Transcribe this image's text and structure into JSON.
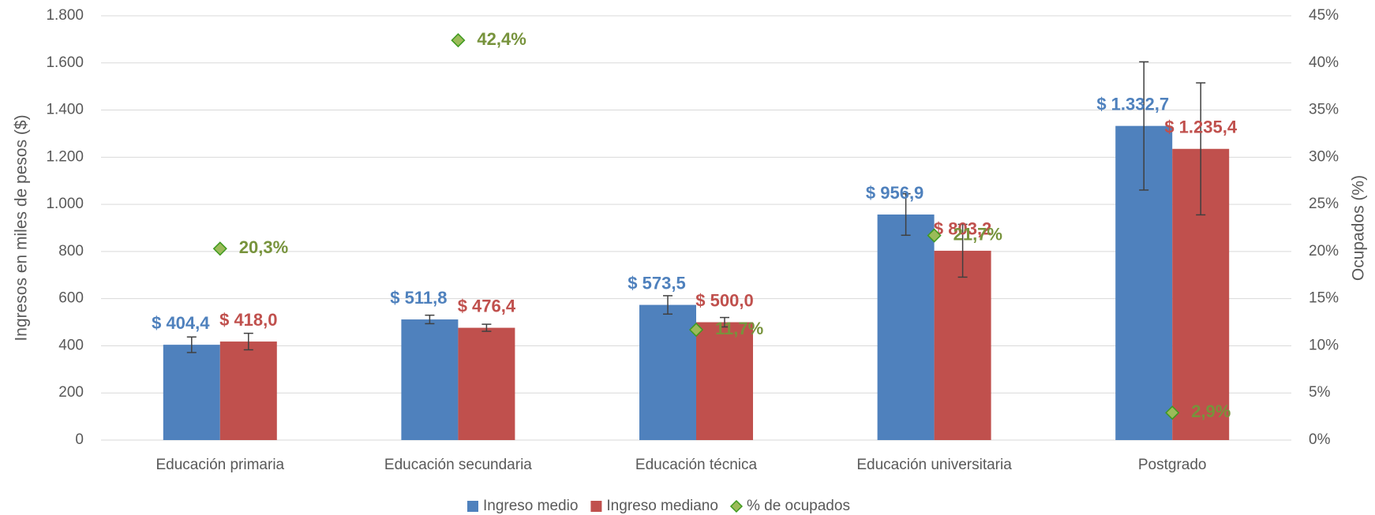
{
  "chart_data": {
    "type": "bar",
    "categories": [
      "Educación primaria",
      "Educación secundaria",
      "Educación técnica",
      "Educación universitaria",
      "Postgrado"
    ],
    "series": [
      {
        "name": "Ingreso medio",
        "color": "#4f81bd",
        "values": [
          404.4,
          511.8,
          573.5,
          956.9,
          1332.7
        ],
        "value_labels": [
          "$ 404,4",
          "$ 511,8",
          "$ 573,5",
          "$ 956,9",
          "$ 1.332,7"
        ],
        "errors": [
          33,
          18,
          39,
          88,
          272
        ]
      },
      {
        "name": "Ingreso mediano",
        "color": "#c0504d",
        "values": [
          418.0,
          476.4,
          500.0,
          803.2,
          1235.4
        ],
        "value_labels": [
          "$ 418,0",
          "$ 476,4",
          "$ 500,0",
          "$ 803,2",
          "$ 1.235,4"
        ],
        "errors": [
          35,
          15,
          20,
          112,
          280
        ]
      },
      {
        "name": "% de ocupados",
        "color": "#9bbb59",
        "axis": "y2",
        "type": "scatter",
        "values": [
          20.3,
          42.4,
          11.7,
          21.7,
          2.9
        ],
        "value_labels": [
          "20,3%",
          "42,4%",
          "11,7%",
          "21,7%",
          "2,9%"
        ]
      }
    ],
    "ylabel": "Ingresos en miles de pesos ($)",
    "y2label": "Ocupados (%)",
    "ylim": [
      0,
      1800
    ],
    "yticks": [
      0,
      200,
      400,
      600,
      800,
      {
        "value": 1000,
        "label": "1.000"
      },
      {
        "value": 1200,
        "label": "1.200"
      },
      {
        "value": 1400,
        "label": "1.400"
      },
      {
        "value": 1600,
        "label": "1.600"
      },
      {
        "value": 1800,
        "label": "1.800"
      }
    ],
    "y2lim": [
      0,
      45
    ],
    "y2ticks": [
      {
        "value": 0,
        "label": "0%"
      },
      {
        "value": 5,
        "label": "5%"
      },
      {
        "value": 10,
        "label": "10%"
      },
      {
        "value": 15,
        "label": "15%"
      },
      {
        "value": 20,
        "label": "20%"
      },
      {
        "value": 25,
        "label": "25%"
      },
      {
        "value": 30,
        "label": "30%"
      },
      {
        "value": 35,
        "label": "35%"
      },
      {
        "value": 40,
        "label": "40%"
      },
      {
        "value": 45,
        "label": "45%"
      }
    ],
    "grid": true,
    "legend": "bottom"
  }
}
